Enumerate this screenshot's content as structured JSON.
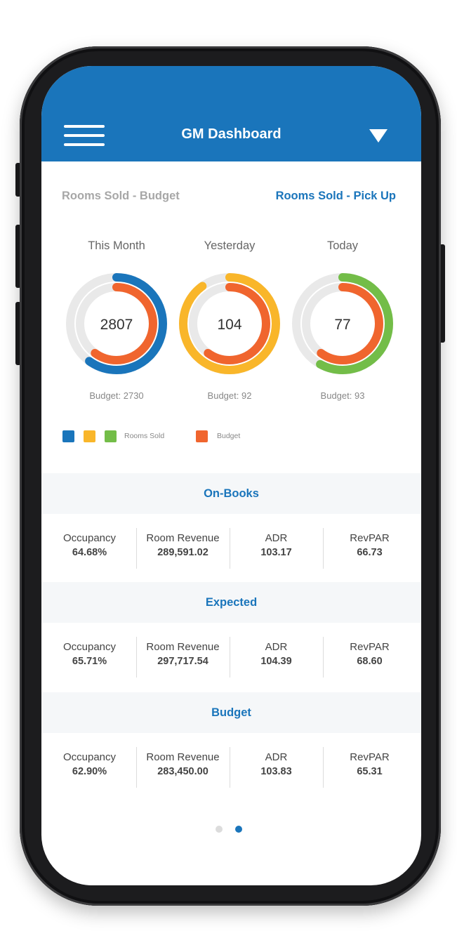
{
  "header": {
    "title": "GM Dashboard",
    "menu_icon": "hamburger-menu-icon",
    "dropdown_icon": "triangle-down-icon"
  },
  "tabs": {
    "left": "Rooms Sold - Budget",
    "right": "Rooms Sold - Pick Up"
  },
  "colors": {
    "header_bg": "#1a75bb",
    "accent": "#1a75bb",
    "this_month": "#1a75bb",
    "yesterday": "#f9b62a",
    "today": "#73bd48",
    "budget": "#f0652e",
    "track": "#e9e9e9"
  },
  "gauges": [
    {
      "label": "This Month",
      "value": "2807",
      "budget_label": "Budget: 2730",
      "sold_fraction": 0.6,
      "budget_fraction": 0.6
    },
    {
      "label": "Yesterday",
      "value": "104",
      "budget_label": "Budget: 92",
      "sold_fraction": 0.9,
      "budget_fraction": 0.6
    },
    {
      "label": "Today",
      "value": "77",
      "budget_label": "Budget: 93",
      "sold_fraction": 0.58,
      "budget_fraction": 0.6
    }
  ],
  "legend": {
    "rooms_sold": "Rooms Sold",
    "budget": "Budget"
  },
  "sections": [
    {
      "title": "On-Books",
      "metrics": [
        {
          "label": "Occupancy",
          "value": "64.68%"
        },
        {
          "label": "Room Revenue",
          "value": "289,591.02"
        },
        {
          "label": "ADR",
          "value": "103.17"
        },
        {
          "label": "RevPAR",
          "value": "66.73"
        }
      ]
    },
    {
      "title": "Expected",
      "metrics": [
        {
          "label": "Occupancy",
          "value": "65.71%"
        },
        {
          "label": "Room Revenue",
          "value": "297,717.54"
        },
        {
          "label": "ADR",
          "value": "104.39"
        },
        {
          "label": "RevPAR",
          "value": "68.60"
        }
      ]
    },
    {
      "title": "Budget",
      "metrics": [
        {
          "label": "Occupancy",
          "value": "62.90%"
        },
        {
          "label": "Room Revenue",
          "value": "283,450.00"
        },
        {
          "label": "ADR",
          "value": "103.83"
        },
        {
          "label": "RevPAR",
          "value": "65.31"
        }
      ]
    }
  ],
  "pagination": {
    "total": 2,
    "active": 2
  }
}
